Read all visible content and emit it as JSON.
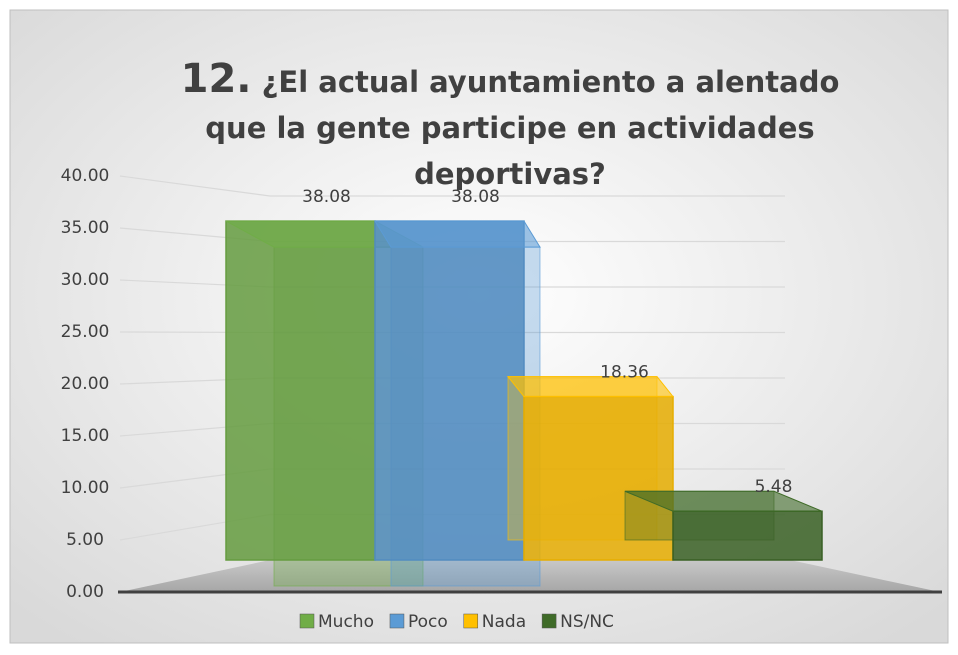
{
  "chart_data": {
    "type": "bar3d",
    "title_number": "12.",
    "title": "¿El actual ayuntamiento a alentado que la gente participe en actividades deportivas?",
    "series": [
      {
        "name": "Mucho",
        "color": "#70ad47",
        "values": [
          38.08
        ]
      },
      {
        "name": "Poco",
        "color": "#5b9bd5",
        "values": [
          38.08
        ]
      },
      {
        "name": "Nada",
        "color": "#ffc000",
        "values": [
          18.36
        ]
      },
      {
        "name": "NS/NC",
        "color": "#3f6b28",
        "values": [
          5.48
        ]
      }
    ],
    "ylim": [
      0,
      40
    ],
    "yticks": [
      {
        "value": 0,
        "label": "0.00"
      },
      {
        "value": 5,
        "label": "5.00"
      },
      {
        "value": 10,
        "label": "10.00"
      },
      {
        "value": 15,
        "label": "15.00"
      },
      {
        "value": 20,
        "label": "20.00"
      },
      {
        "value": 25,
        "label": "25.00"
      },
      {
        "value": 30,
        "label": "30.00"
      },
      {
        "value": 35,
        "label": "35.00"
      },
      {
        "value": 40,
        "label": "40.00"
      }
    ],
    "grid": true,
    "legend": "bottom"
  }
}
